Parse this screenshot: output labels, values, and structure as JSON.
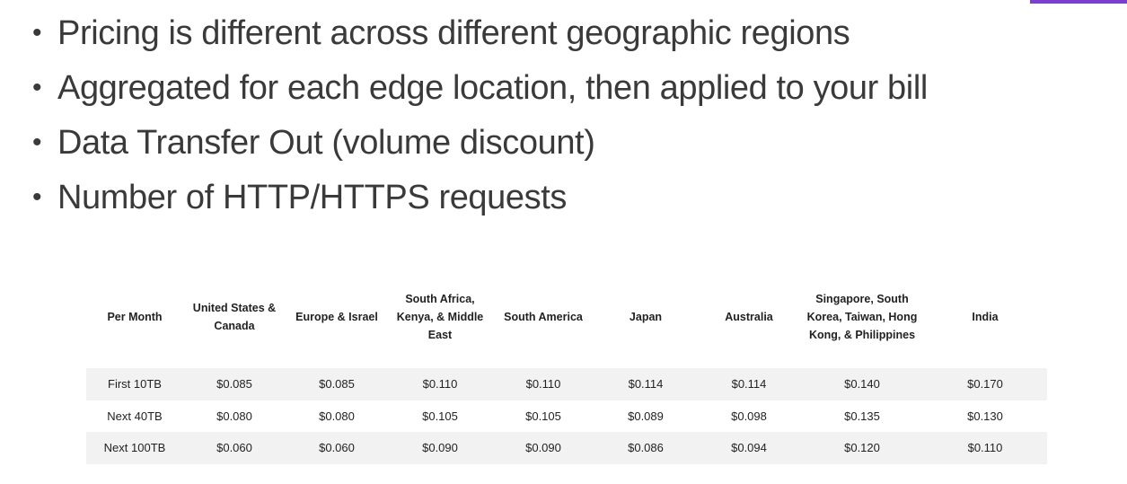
{
  "bullets": [
    "Pricing is different across different geographic regions",
    "Aggregated for each edge location, then applied to your bill",
    "Data Transfer Out (volume discount)",
    "Number of HTTP/HTTPS requests"
  ],
  "bullet_glyph": "•",
  "accent_color": "#7b3fd0",
  "table": {
    "headers": [
      "Per Month",
      "United States & Canada",
      "Europe & Israel",
      "South Africa, Kenya, & Middle East",
      "South America",
      "Japan",
      "Australia",
      "Singapore, South Korea, Taiwan, Hong Kong, & Philippines",
      "India"
    ],
    "rows": [
      [
        "First 10TB",
        "$0.085",
        "$0.085",
        "$0.110",
        "$0.110",
        "$0.114",
        "$0.114",
        "$0.140",
        "$0.170"
      ],
      [
        "Next 40TB",
        "$0.080",
        "$0.080",
        "$0.105",
        "$0.105",
        "$0.089",
        "$0.098",
        "$0.135",
        "$0.130"
      ],
      [
        "Next 100TB",
        "$0.060",
        "$0.060",
        "$0.090",
        "$0.090",
        "$0.086",
        "$0.094",
        "$0.120",
        "$0.110"
      ]
    ]
  }
}
